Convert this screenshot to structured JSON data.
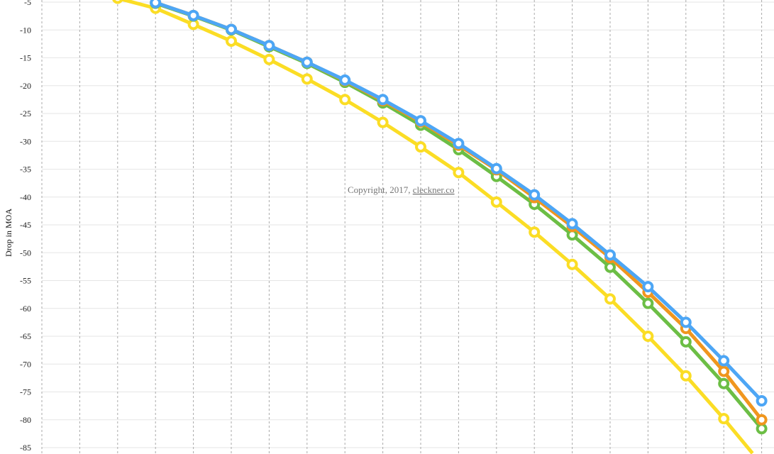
{
  "chart_data": {
    "type": "line",
    "title": "",
    "xlabel": "",
    "ylabel": "Drop in MOA",
    "ylim": [
      -85,
      -5
    ],
    "yticks": [
      -5,
      -10,
      -15,
      -20,
      -25,
      -30,
      -35,
      -40,
      -45,
      -50,
      -55,
      -60,
      -65,
      -70,
      -75,
      -80,
      -85
    ],
    "x": [
      0,
      1,
      2,
      3,
      4,
      5,
      6,
      7,
      8,
      9,
      10,
      11,
      12,
      13,
      14,
      15,
      16,
      17,
      18,
      19
    ],
    "grid": {
      "horizontal": "solid",
      "vertical": "dotted"
    },
    "series": [
      {
        "color": "#FBDD25",
        "values": [
          null,
          null,
          -4.3,
          -6.1,
          -9.0,
          -12.0,
          -15.3,
          -18.8,
          -22.5,
          -26.6,
          -31.0,
          -35.6,
          -40.9,
          -46.3,
          -52.1,
          -58.3,
          -65.0,
          -72.1,
          -79.8,
          -88.0
        ]
      },
      {
        "color": "#6CBE45",
        "values": [
          null,
          null,
          null,
          -5.2,
          -7.5,
          -10.0,
          -13.0,
          -16.0,
          -19.4,
          -23.1,
          -27.1,
          -31.5,
          -36.3,
          -41.3,
          -46.8,
          -52.6,
          -59.1,
          -66.0,
          -73.5,
          -81.6
        ]
      },
      {
        "color": "#F0961E",
        "values": [
          null,
          null,
          null,
          -5.1,
          -7.4,
          -9.9,
          -12.8,
          -15.8,
          -19.1,
          -22.7,
          -26.5,
          -30.7,
          -35.1,
          -40.1,
          -45.3,
          -50.9,
          -57.1,
          -63.6,
          -71.3,
          -80.0
        ]
      },
      {
        "color": "#4DA6F5",
        "values": [
          null,
          null,
          null,
          -5.1,
          -7.4,
          -9.9,
          -12.8,
          -15.8,
          -19.0,
          -22.5,
          -26.3,
          -30.4,
          -34.9,
          -39.6,
          -44.8,
          -50.4,
          -56.1,
          -62.5,
          -69.4,
          -76.6
        ]
      }
    ]
  },
  "watermark": {
    "text": "Copyright, 2017, ",
    "link": "cleckner.co"
  }
}
